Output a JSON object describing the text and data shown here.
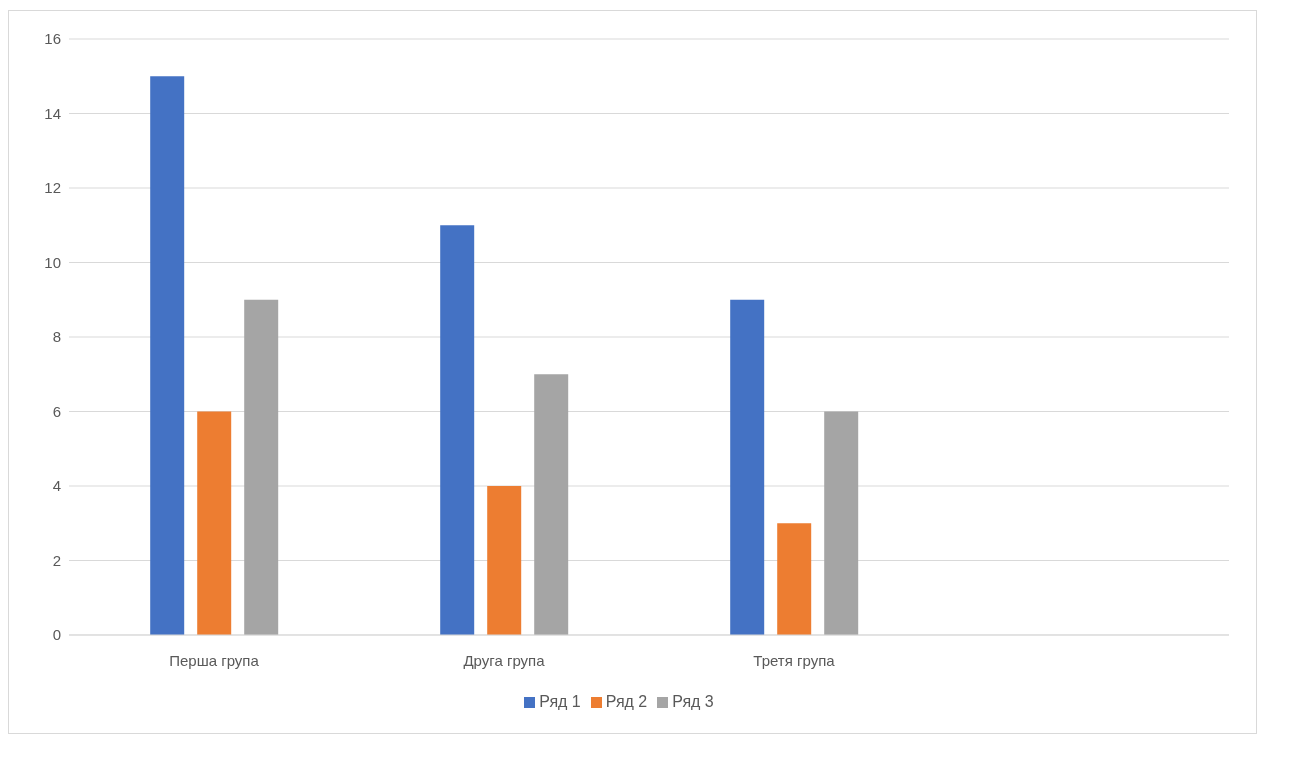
{
  "chart_data": {
    "type": "bar",
    "categories": [
      "Перша група",
      "Друга група",
      "Третя група",
      null
    ],
    "series": [
      {
        "name": "Ряд 1",
        "color": "#4472c4",
        "values": [
          15,
          11,
          9,
          null
        ]
      },
      {
        "name": "Ряд 2",
        "color": "#ed7d31",
        "values": [
          6,
          4,
          3,
          null
        ]
      },
      {
        "name": "Ряд 3",
        "color": "#a5a5a5",
        "values": [
          9,
          7,
          6,
          null
        ]
      }
    ],
    "ylim": [
      0,
      16
    ],
    "yticks": [
      0,
      2,
      4,
      6,
      8,
      10,
      12,
      14,
      16
    ],
    "grid": "y",
    "legend": "bottom"
  }
}
